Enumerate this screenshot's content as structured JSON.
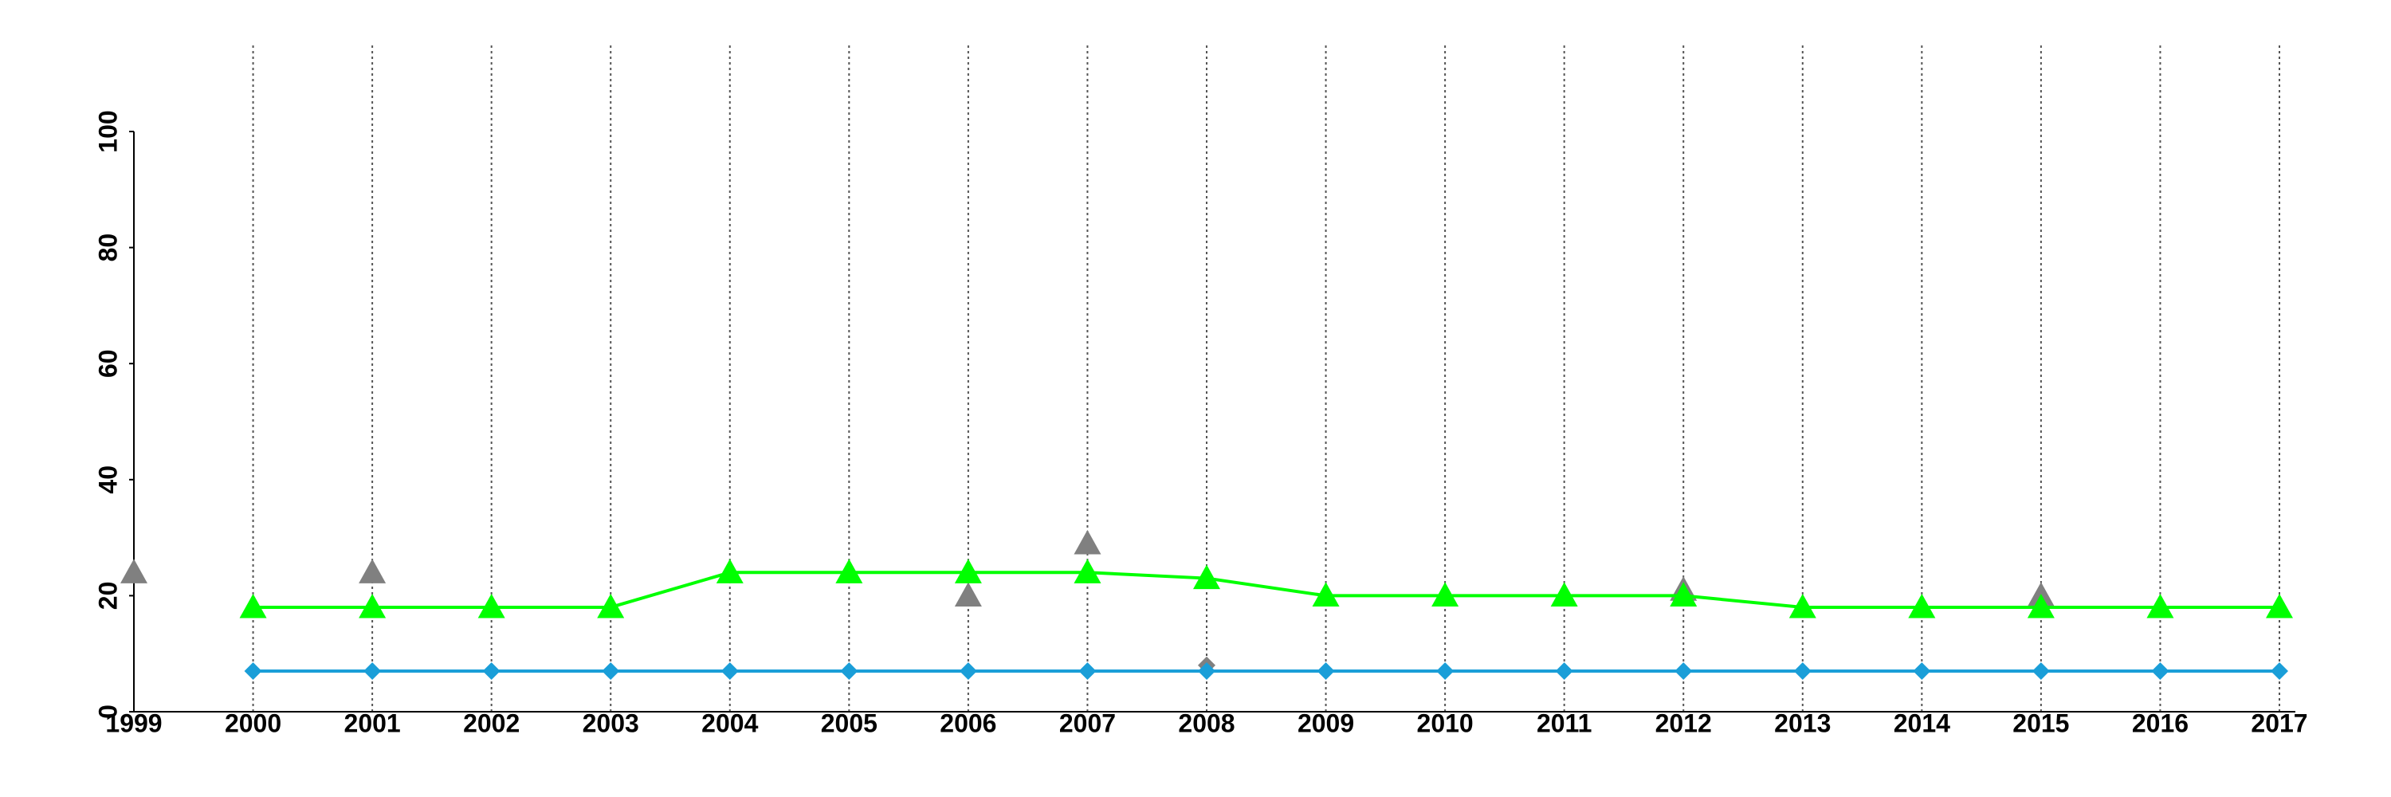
{
  "chart_data": {
    "type": "line",
    "x": [
      1999,
      2000,
      2001,
      2002,
      2003,
      2004,
      2005,
      2006,
      2007,
      2008,
      2009,
      2010,
      2011,
      2012,
      2013,
      2014,
      2015,
      2016,
      2017
    ],
    "xlim": [
      1999,
      2017
    ],
    "xticks": [
      1999,
      2000,
      2001,
      2002,
      2003,
      2004,
      2005,
      2006,
      2007,
      2008,
      2009,
      2010,
      2011,
      2012,
      2013,
      2014,
      2015,
      2016,
      2017
    ],
    "ylim": [
      0,
      100
    ],
    "yticks": [
      0,
      20,
      40,
      60,
      80,
      100
    ],
    "grid": true,
    "series": [
      {
        "color": "#808080",
        "marker": "triangle",
        "line": false,
        "values": [
          24,
          null,
          24,
          null,
          null,
          null,
          null,
          20,
          29,
          null,
          null,
          null,
          null,
          21,
          null,
          null,
          20,
          null,
          null
        ]
      },
      {
        "color": "#808080",
        "marker": "diamond",
        "line": false,
        "values": [
          null,
          null,
          null,
          null,
          null,
          null,
          null,
          null,
          null,
          8,
          null,
          null,
          null,
          null,
          null,
          null,
          null,
          null,
          null
        ]
      },
      {
        "color": "#1a9ed8",
        "marker": "diamond",
        "line": true,
        "values": [
          null,
          7,
          7,
          7,
          7,
          7,
          7,
          7,
          7,
          7,
          7,
          7,
          7,
          7,
          7,
          7,
          7,
          7,
          7
        ]
      },
      {
        "color": "#00ff00",
        "marker": "triangle",
        "line": true,
        "values": [
          null,
          18,
          18,
          18,
          18,
          24,
          24,
          24,
          24,
          23,
          20,
          20,
          20,
          20,
          18,
          18,
          18,
          18,
          18
        ]
      }
    ]
  }
}
